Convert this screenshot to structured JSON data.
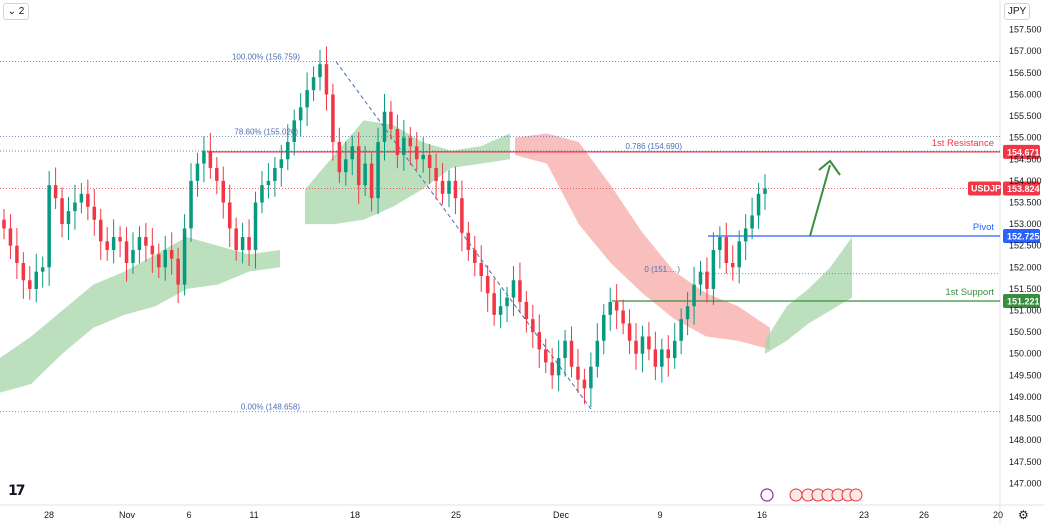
{
  "toolbar": {
    "legend_label": "⌄ 2",
    "currency": "JPY"
  },
  "logo_text": "17",
  "settings_icon": "⚙",
  "colors": {
    "up": "#089981",
    "down": "#f23645",
    "cloud_green": "#a5d6a7",
    "cloud_red": "#f7a9a7",
    "resistance": "#f23645",
    "pivot": "#2962ff",
    "support": "#388e3c",
    "fib": "#4a6fb5",
    "arrow": "#388e3c"
  },
  "chart_data": {
    "type": "candlestick",
    "symbol": "USDJPY",
    "last_price": 153.824,
    "ylim": [
      146.5,
      158.0
    ],
    "y_ticks": [
      "157.500",
      "157.000",
      "156.500",
      "156.000",
      "155.500",
      "155.000",
      "154.500",
      "154.000",
      "153.500",
      "153.000",
      "152.500",
      "152.000",
      "151.500",
      "151.000",
      "150.500",
      "150.000",
      "149.500",
      "149.000",
      "148.500",
      "148.000",
      "147.500",
      "147.000"
    ],
    "x_ticks": [
      "28",
      "Nov",
      "6",
      "11",
      "18",
      "25",
      "Dec",
      "9",
      "16",
      "23",
      "26",
      "20"
    ],
    "levels": [
      {
        "name": "1st Resistance",
        "value": 154.671,
        "label": "154.671"
      },
      {
        "name": "Pivot",
        "value": 152.725,
        "label": "152.725"
      },
      {
        "name": "1st Support",
        "value": 151.221,
        "label": "151.221"
      }
    ],
    "fibonacci": [
      {
        "label": "100.00% (156.759)",
        "value": 156.759
      },
      {
        "label": "78.60% (155.026)",
        "value": 155.026
      },
      {
        "label": "0.786 (154.690)",
        "value": 154.69
      },
      {
        "label": "0 (151.…)",
        "value": 151.85
      },
      {
        "label": "0.00% (148.658)",
        "value": 148.658
      }
    ],
    "closes": [
      152.9,
      152.5,
      152.1,
      151.7,
      151.5,
      151.9,
      152.0,
      153.9,
      153.6,
      153.0,
      153.3,
      153.5,
      153.7,
      153.4,
      153.1,
      152.6,
      152.4,
      152.7,
      152.6,
      152.1,
      152.4,
      152.7,
      152.5,
      152.3,
      152.0,
      152.4,
      152.2,
      151.6,
      152.9,
      154.0,
      154.4,
      154.7,
      154.3,
      154.0,
      153.5,
      152.9,
      152.4,
      152.7,
      152.4,
      153.5,
      153.9,
      154.0,
      154.3,
      154.5,
      154.9,
      155.4,
      155.7,
      156.1,
      156.4,
      156.7,
      156.0,
      154.9,
      154.2,
      154.5,
      154.8,
      153.9,
      154.4,
      153.6,
      154.9,
      155.6,
      155.2,
      154.6,
      155.0,
      154.8,
      154.5,
      154.6,
      154.3,
      154.0,
      153.7,
      154.0,
      153.6,
      152.8,
      152.4,
      152.1,
      151.8,
      151.4,
      150.9,
      151.1,
      151.3,
      151.7,
      151.2,
      150.8,
      150.5,
      150.1,
      149.8,
      149.5,
      149.9,
      150.3,
      149.7,
      149.4,
      149.2,
      149.7,
      150.3,
      150.9,
      151.2,
      151.0,
      150.7,
      150.3,
      150.0,
      150.4,
      150.1,
      149.7,
      150.1,
      149.9,
      150.3,
      150.8,
      151.1,
      151.6,
      151.9,
      151.5,
      152.4,
      152.7,
      152.1,
      152.0,
      152.6,
      152.9,
      153.2,
      153.7,
      153.824
    ],
    "cloud_segments": [
      {
        "color": "green",
        "top": [
          149.9,
          150.4,
          151.0,
          151.6,
          151.9,
          152.3,
          152.7,
          152.5,
          152.3,
          152.4
        ],
        "bottom": [
          149.1,
          149.3,
          150.0,
          150.6,
          150.9,
          151.1,
          151.5,
          151.6,
          151.9,
          152.0
        ]
      },
      {
        "color": "green",
        "top": [
          153.8,
          154.6,
          155.4,
          155.3,
          154.9,
          154.7,
          154.8,
          155.1
        ],
        "bottom": [
          153.0,
          153.0,
          153.1,
          153.4,
          153.8,
          154.3,
          154.4,
          154.5
        ]
      },
      {
        "color": "red",
        "top": [
          155.0,
          155.1,
          154.9,
          153.9,
          152.8,
          151.9,
          151.4,
          151.1,
          150.6
        ],
        "bottom": [
          154.6,
          154.4,
          153.0,
          152.1,
          151.4,
          150.8,
          150.4,
          150.3,
          150.1
        ]
      },
      {
        "color": "green",
        "top": [
          150.3,
          151.1,
          151.5,
          152.0,
          152.7
        ],
        "bottom": [
          150.0,
          150.3,
          150.7,
          151.0,
          151.3
        ]
      }
    ],
    "annotations": [
      "1st Resistance",
      "Pivot",
      "1st Support"
    ]
  }
}
